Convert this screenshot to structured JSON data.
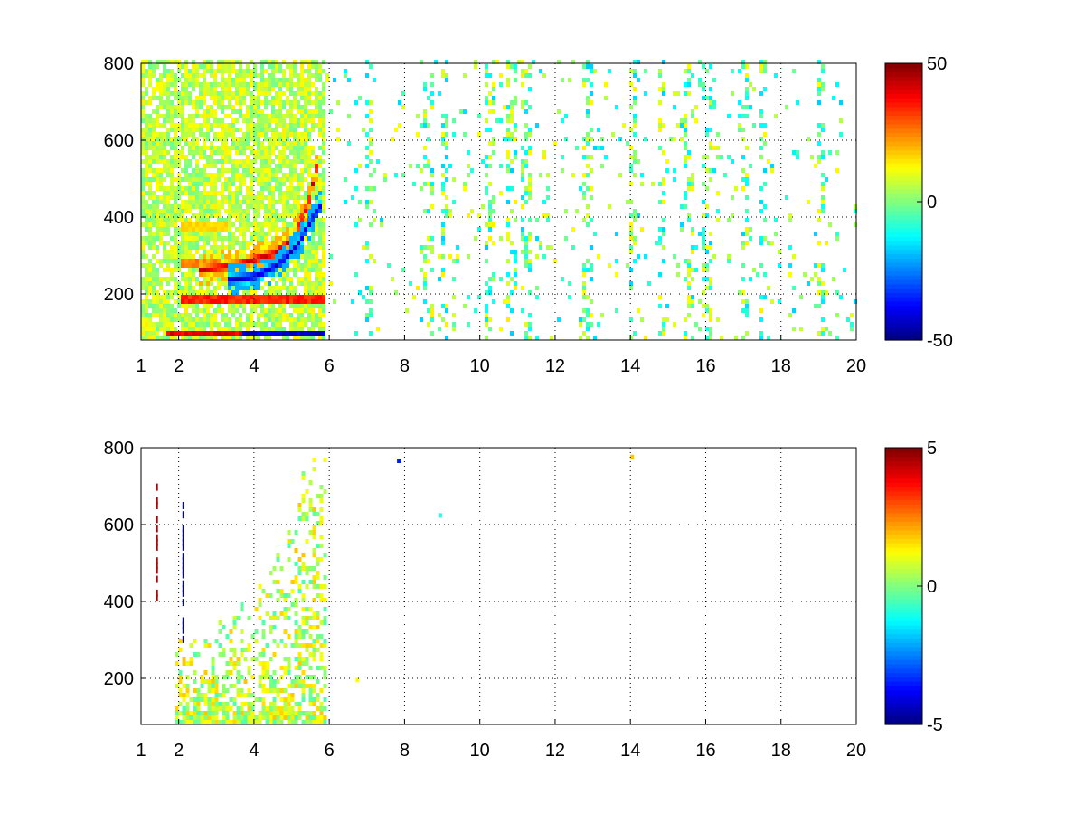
{
  "chart_data": [
    {
      "type": "heatmap",
      "title": "",
      "xlabel": "",
      "ylabel": "",
      "xlim": [
        1,
        20
      ],
      "ylim": [
        80,
        800
      ],
      "xticks": [
        1,
        2,
        4,
        6,
        8,
        10,
        12,
        14,
        16,
        18,
        20
      ],
      "xtick_labels": [
        "1",
        "2",
        "4",
        "6",
        "8",
        "10",
        "12",
        "14",
        "16",
        "18",
        "20"
      ],
      "yticks": [
        200,
        400,
        600,
        800
      ],
      "ytick_labels": [
        "200",
        "400",
        "600",
        "800"
      ],
      "grid": true,
      "grid_style": "dotted",
      "colormap": "jet",
      "clim": [
        -50,
        50
      ],
      "colorbar_ticks": [
        -50,
        0,
        50
      ],
      "colorbar_labels": [
        "-50",
        "0",
        "50"
      ],
      "background": "#ffffff",
      "dense_region": {
        "x": [
          1,
          5.9
        ],
        "y": [
          80,
          800
        ]
      },
      "curves": [
        {
          "sign": "positive",
          "value": 45,
          "x": [
            2.5,
            3.5,
            4.5,
            5.0,
            5.4,
            5.7
          ],
          "y": [
            255,
            270,
            300,
            340,
            430,
            560
          ]
        },
        {
          "sign": "negative",
          "value": -45,
          "x": [
            3.3,
            4.0,
            4.6,
            5.1,
            5.5,
            5.8
          ],
          "y": [
            230,
            240,
            270,
            320,
            390,
            430
          ]
        }
      ],
      "bands": [
        {
          "y": 180,
          "x": [
            2.0,
            5.9
          ],
          "value": 38
        },
        {
          "y": 275,
          "x": [
            2.0,
            3.3
          ],
          "value": 28
        },
        {
          "y": 370,
          "x": [
            2.0,
            3.3
          ],
          "value": 18
        },
        {
          "y": 90,
          "x": [
            1.6,
            3.6
          ],
          "value": 44
        },
        {
          "y": 90,
          "x": [
            3.6,
            5.9
          ],
          "value": -46
        }
      ],
      "sparse_region": {
        "x": [
          5.9,
          20
        ],
        "values": "scattered speckles, about -20 to 15"
      },
      "sparse_column_hotspots": [
        7.0,
        8.6,
        9.0,
        10.2,
        10.8,
        11.2,
        12.8,
        14.0,
        14.8,
        15.5,
        16.0,
        17.0,
        17.5,
        19.0
      ]
    },
    {
      "type": "heatmap",
      "title": "",
      "xlabel": "",
      "ylabel": "",
      "xlim": [
        1,
        20
      ],
      "ylim": [
        80,
        800
      ],
      "xticks": [
        1,
        2,
        4,
        6,
        8,
        10,
        12,
        14,
        16,
        18,
        20
      ],
      "xtick_labels": [
        "1",
        "2",
        "4",
        "6",
        "8",
        "10",
        "12",
        "14",
        "16",
        "18",
        "20"
      ],
      "yticks": [
        200,
        400,
        600,
        800
      ],
      "ytick_labels": [
        "200",
        "400",
        "600",
        "800"
      ],
      "grid": true,
      "grid_style": "dotted",
      "colormap": "jet",
      "clim": [
        -5,
        5
      ],
      "colorbar_ticks": [
        -5,
        0,
        5
      ],
      "colorbar_labels": [
        "-5",
        "0",
        "5"
      ],
      "background": "#ffffff",
      "dense_region": {
        "x": [
          1.9,
          5.9
        ],
        "y": [
          80,
          800
        ],
        "typical_value": 0.4
      },
      "isolated_points": [
        {
          "x": 7.8,
          "y": 760,
          "value": -3.5
        },
        {
          "x": 14.0,
          "y": 770,
          "value": 1.8
        },
        {
          "x": 8.9,
          "y": 618,
          "value": -1.0
        },
        {
          "x": 6.7,
          "y": 190,
          "value": 1.2
        }
      ],
      "vertical_streaks": [
        {
          "x": 1.4,
          "y": [
            400,
            700
          ],
          "value": 4.5
        },
        {
          "x": 2.1,
          "y": [
            280,
            650
          ],
          "value": -4.5
        }
      ]
    }
  ]
}
